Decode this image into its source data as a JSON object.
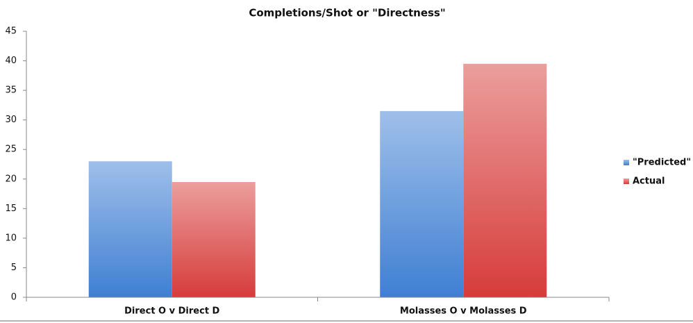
{
  "chart_data": {
    "type": "bar",
    "title": "Completions/Shot or \"Directness\"",
    "categories": [
      "Direct O v Direct D",
      "Molasses O v Molasses D"
    ],
    "series": [
      {
        "name": "\"Predicted\"",
        "color": "#3f7fd3",
        "values": [
          23,
          31.5
        ]
      },
      {
        "name": "Actual",
        "color": "#d63c3a",
        "values": [
          19.5,
          39.5
        ]
      }
    ],
    "ylim": [
      0,
      45
    ],
    "yticks": [
      0,
      5,
      10,
      15,
      20,
      25,
      30,
      35,
      40,
      45
    ],
    "grid": false,
    "legend": "right"
  }
}
